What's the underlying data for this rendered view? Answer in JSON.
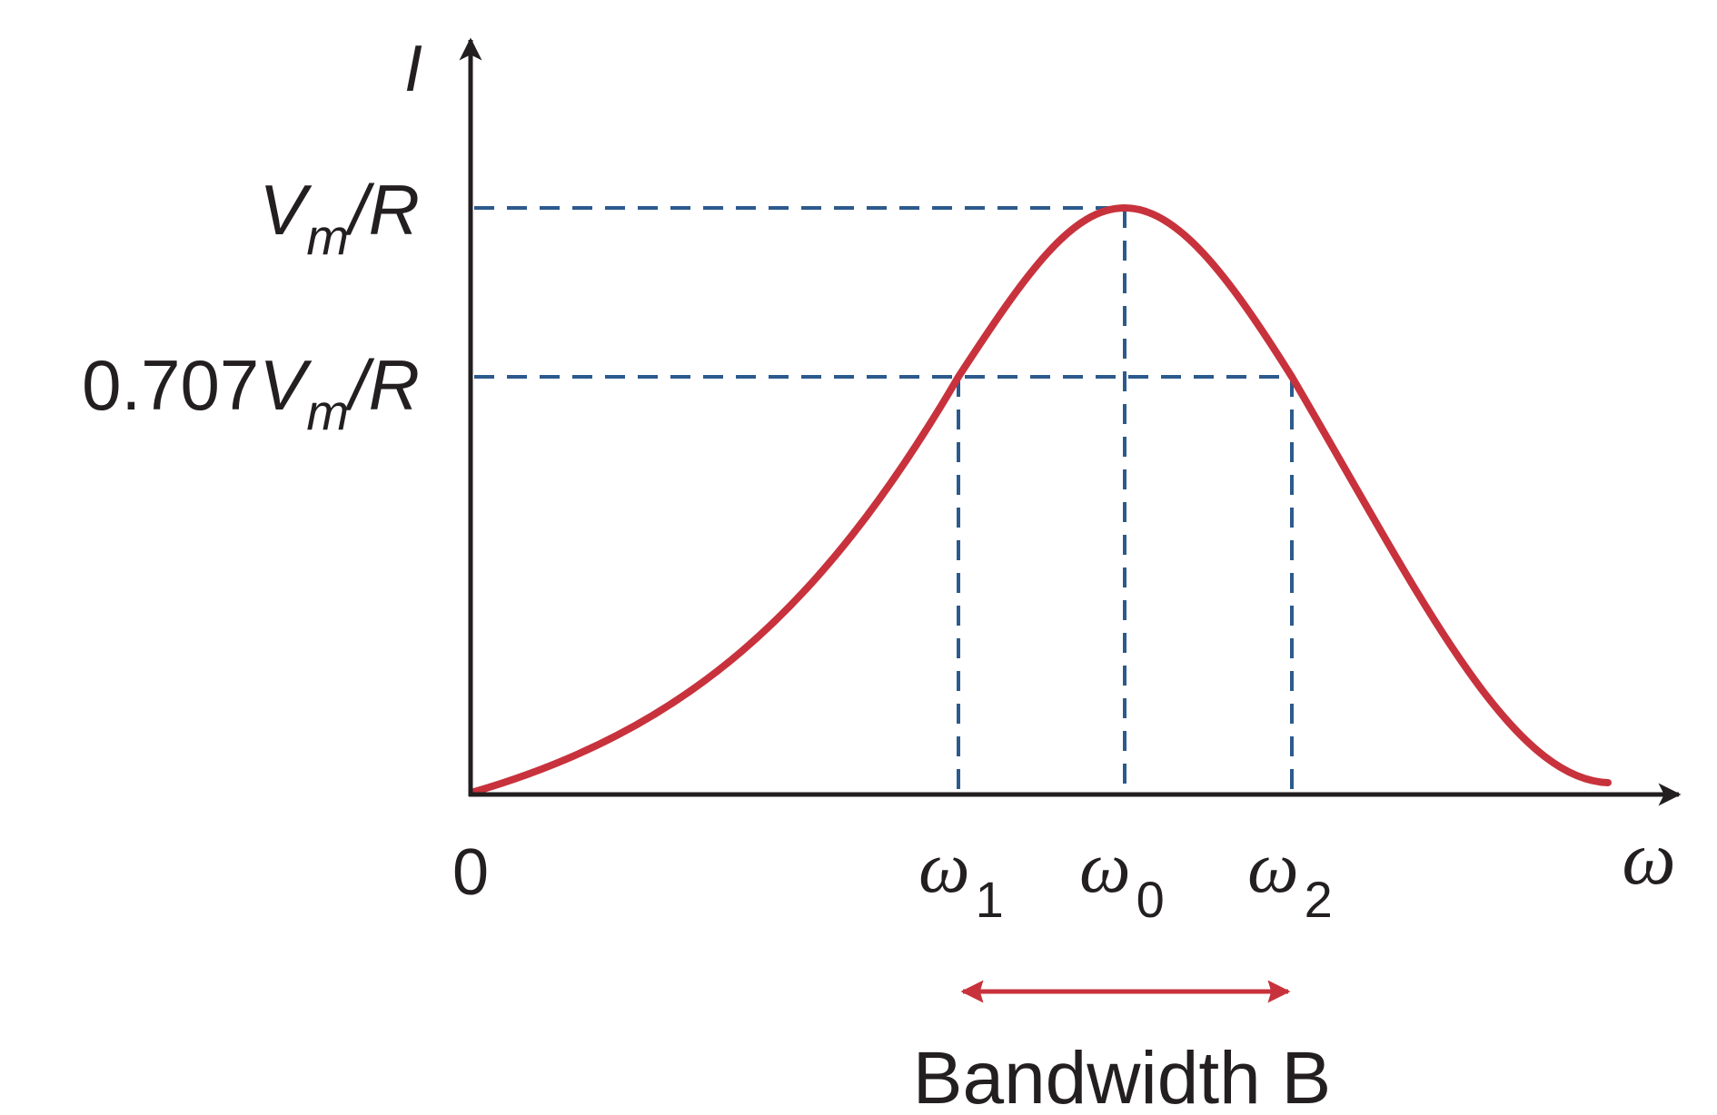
{
  "axes": {
    "y_label": "I",
    "x_label": "ω",
    "origin_label": "0"
  },
  "y_ticks": {
    "peak": {
      "main": "V",
      "sub": "m",
      "rest": "/R"
    },
    "half_power": {
      "prefix": "0.707",
      "main": "V",
      "sub": "m",
      "rest": "/R"
    }
  },
  "x_ticks": {
    "w1": {
      "main": "ω",
      "sub": "1"
    },
    "w0": {
      "main": "ω",
      "sub": "0"
    },
    "w2": {
      "main": "ω",
      "sub": "2"
    }
  },
  "bandwidth": {
    "label": "Bandwidth B"
  },
  "colors": {
    "curve": "#c8323c",
    "guides": "#2c5a8c",
    "axes": "#231f20",
    "bandwidth_arrow": "#c8323c"
  }
}
